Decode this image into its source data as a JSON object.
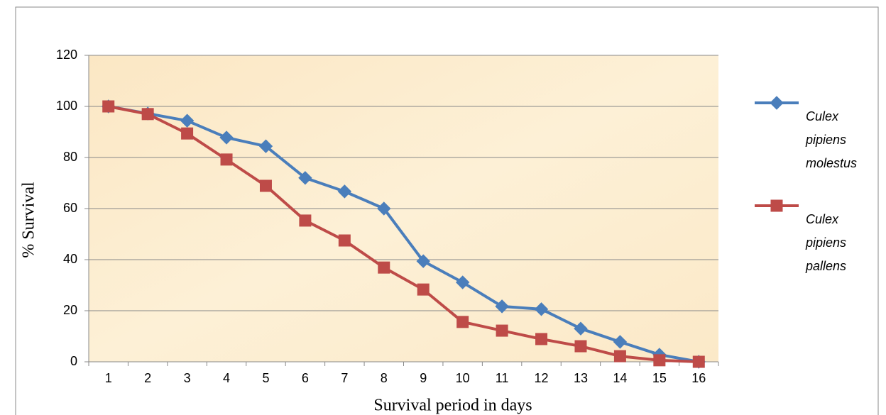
{
  "chart_data": {
    "type": "line",
    "x_label": "Survival period in days",
    "y_label": "% Survival",
    "categories": [
      "1",
      "2",
      "3",
      "4",
      "5",
      "6",
      "7",
      "8",
      "9",
      "10",
      "11",
      "12",
      "13",
      "14",
      "15",
      "16"
    ],
    "series": [
      {
        "name": "Culex pipiens molestus",
        "color": "#4a7ebb",
        "marker": "diamond",
        "values": [
          100,
          97.2,
          94.4,
          87.8,
          84.4,
          72,
          66.7,
          60,
          39.4,
          31.1,
          21.7,
          20.6,
          13,
          7.8,
          2.8,
          0
        ]
      },
      {
        "name": "Culex pipiens pallens",
        "color": "#be4b48",
        "marker": "square",
        "values": [
          100,
          97,
          89.4,
          79.2,
          68.9,
          55.3,
          47.5,
          36.9,
          28.3,
          15.6,
          12.2,
          8.9,
          6.1,
          2.2,
          0.6,
          0
        ]
      }
    ],
    "ylim": [
      0,
      120
    ],
    "yticks": [
      0,
      20,
      40,
      60,
      80,
      100,
      120
    ],
    "grid": true,
    "legend": "right"
  }
}
